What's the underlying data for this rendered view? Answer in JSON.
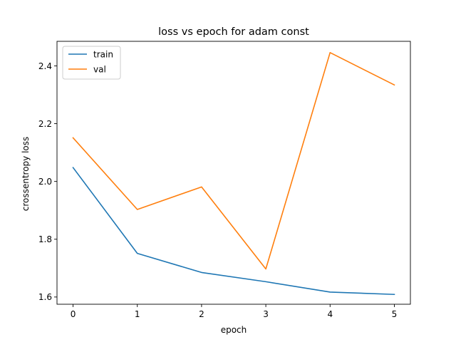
{
  "chart_data": {
    "type": "line",
    "title": "loss vs epoch for adam const",
    "xlabel": "epoch",
    "ylabel": "crossentropy loss",
    "x": [
      0,
      1,
      2,
      3,
      4,
      5
    ],
    "xlim": [
      -0.25,
      5.25
    ],
    "ylim": [
      1.575,
      2.485
    ],
    "xticks": [
      0,
      1,
      2,
      3,
      4,
      5
    ],
    "yticks": [
      1.6,
      1.8,
      2.0,
      2.2,
      2.4
    ],
    "ytick_labels": [
      "1.6",
      "1.8",
      "2.0",
      "2.2",
      "2.4"
    ],
    "grid": false,
    "legend_position": "top-left",
    "series": [
      {
        "name": "train",
        "color": "#1f77b4",
        "values": [
          2.048,
          1.751,
          1.685,
          1.653,
          1.617,
          1.609
        ]
      },
      {
        "name": "val",
        "color": "#ff7f0e",
        "values": [
          2.151,
          1.903,
          1.981,
          1.697,
          2.446,
          2.334
        ]
      }
    ]
  }
}
